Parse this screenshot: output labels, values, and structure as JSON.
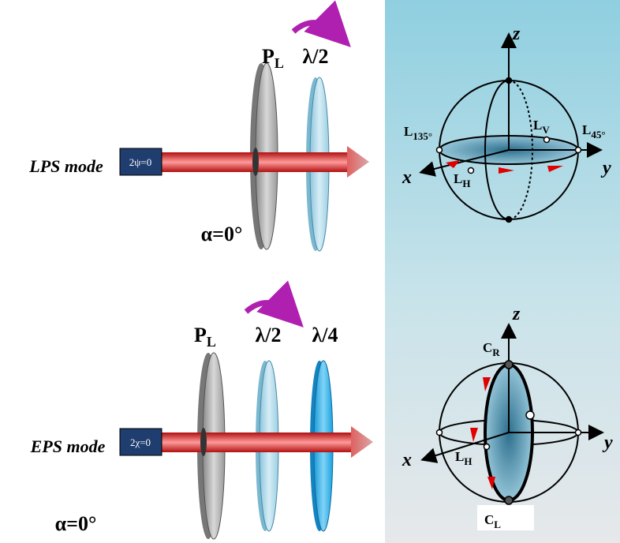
{
  "lps": {
    "mode_label": "LPS mode",
    "source_label": "2ψ=0",
    "angle_label": "α=0°",
    "polarizer": {
      "main": "P",
      "sub": "L"
    },
    "plates": [
      "λ/2"
    ],
    "sphere": {
      "axes": {
        "x": "x",
        "y": "y",
        "z": "z"
      },
      "points": [
        {
          "main": "L",
          "sub": "135°"
        },
        {
          "main": "L",
          "sub": "V"
        },
        {
          "main": "L",
          "sub": "45°"
        },
        {
          "main": "L",
          "sub": "H"
        }
      ]
    }
  },
  "eps": {
    "mode_label": "EPS mode",
    "source_label": "2χ=0",
    "angle_label": "α=0°",
    "polarizer": {
      "main": "P",
      "sub": "L"
    },
    "plates": [
      "λ/2",
      "λ/4"
    ],
    "sphere": {
      "axes": {
        "x": "x",
        "y": "y",
        "z": "z"
      },
      "points": [
        {
          "main": "C",
          "sub": "R"
        },
        {
          "main": "L",
          "sub": "H"
        },
        {
          "main": "C",
          "sub": "L"
        }
      ]
    }
  }
}
